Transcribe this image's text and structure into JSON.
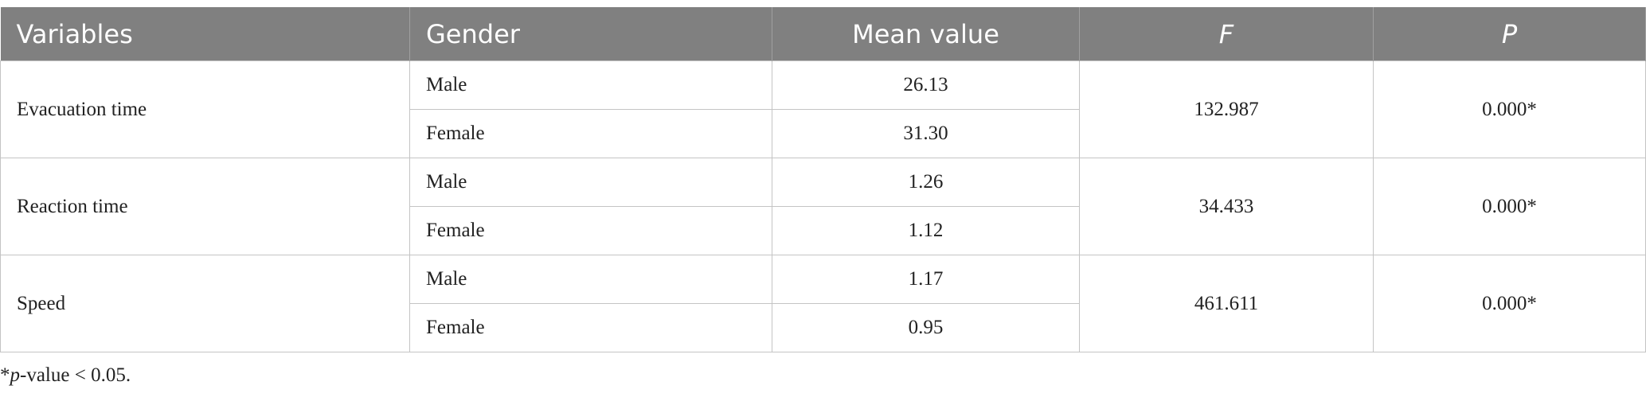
{
  "table": {
    "header": [
      "Variables",
      "Gender",
      "Mean value",
      "F",
      "P"
    ],
    "rows": [
      {
        "variable": "Evacuation time",
        "genders": [
          "Male",
          "Female"
        ],
        "means": [
          "26.13",
          "31.30"
        ],
        "f": "132.987",
        "p": "0.000*"
      },
      {
        "variable": "Reaction time",
        "genders": [
          "Male",
          "Female"
        ],
        "means": [
          "1.26",
          "1.12"
        ],
        "f": "34.433",
        "p": "0.000*"
      },
      {
        "variable": "Speed",
        "genders": [
          "Male",
          "Female"
        ],
        "means": [
          "1.17",
          "0.95"
        ],
        "f": "461.611",
        "p": "0.000*"
      }
    ]
  },
  "footnote": {
    "mark": "*",
    "italic": "p",
    "rest": "-value < 0.05."
  }
}
